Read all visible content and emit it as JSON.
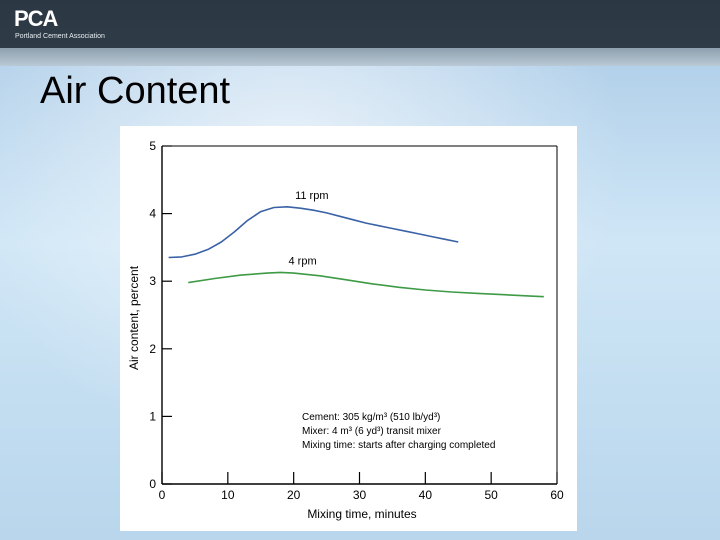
{
  "header": {
    "logo_text": "PCA",
    "logo_subtitle": "Portland Cement Association"
  },
  "slide": {
    "title": "Air Content"
  },
  "chart_data": {
    "type": "line",
    "xlabel": "Mixing time, minutes",
    "ylabel": "Air content, percent",
    "xlim": [
      0,
      60
    ],
    "ylim": [
      0,
      5
    ],
    "xticks": [
      0,
      10,
      20,
      30,
      40,
      50,
      60
    ],
    "yticks": [
      0,
      1,
      2,
      3,
      4,
      5
    ],
    "grid": false,
    "series": [
      {
        "name": "11 rpm",
        "color": "#3a62a6",
        "x": [
          1,
          3,
          5,
          7,
          9,
          11,
          13,
          15,
          17,
          19,
          21,
          23,
          25,
          27,
          29,
          31,
          33,
          35,
          37,
          39,
          41,
          43,
          45
        ],
        "y": [
          3.35,
          3.36,
          3.4,
          3.47,
          3.58,
          3.73,
          3.9,
          4.03,
          4.09,
          4.1,
          4.08,
          4.05,
          4.01,
          3.96,
          3.91,
          3.86,
          3.82,
          3.78,
          3.74,
          3.7,
          3.66,
          3.62,
          3.58
        ]
      },
      {
        "name": "4 rpm",
        "color": "#3e9a45",
        "x": [
          4,
          8,
          12,
          16,
          18,
          20,
          24,
          28,
          32,
          36,
          40,
          44,
          48,
          52,
          56,
          58
        ],
        "y": [
          2.98,
          3.04,
          3.09,
          3.12,
          3.13,
          3.12,
          3.08,
          3.02,
          2.96,
          2.91,
          2.87,
          2.84,
          2.82,
          2.8,
          2.78,
          2.77
        ]
      }
    ],
    "annotations": [
      "Cement: 305 kg/m³ (510 lb/yd³)",
      "Mixer: 4 m³ (6 yd³) transit mixer",
      "Mixing time: starts after charging completed"
    ]
  }
}
